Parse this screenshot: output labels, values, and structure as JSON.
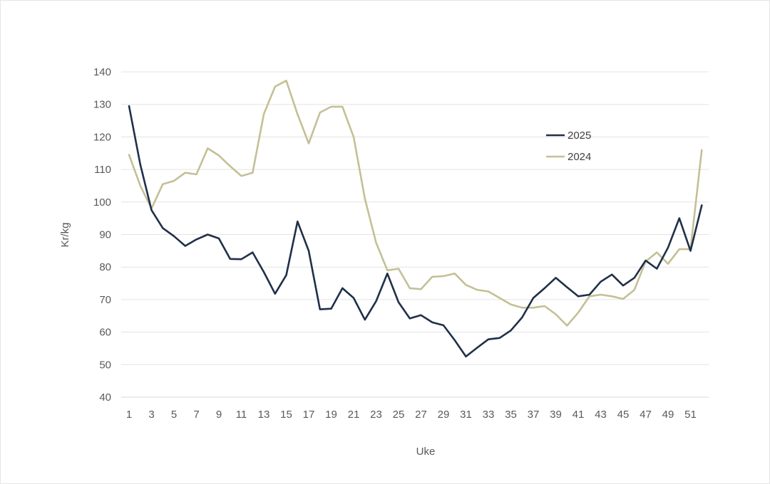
{
  "chart_data": {
    "type": "line",
    "title": "",
    "xlabel": "Uke",
    "ylabel": "Kr/kg",
    "ylim": [
      40,
      140
    ],
    "yticks": [
      40,
      50,
      60,
      70,
      80,
      90,
      100,
      110,
      120,
      130,
      140
    ],
    "xlim": [
      1,
      53
    ],
    "xticks": [
      1,
      3,
      5,
      7,
      9,
      11,
      13,
      15,
      17,
      19,
      21,
      23,
      25,
      27,
      29,
      31,
      33,
      35,
      37,
      39,
      41,
      43,
      45,
      47,
      49,
      51
    ],
    "grid": "horizontal",
    "legend_position": "right",
    "series": [
      {
        "name": "2025",
        "color": "#1f3049",
        "x": [
          1,
          2,
          3,
          4,
          5,
          6,
          7,
          8,
          9,
          10,
          11,
          12,
          13,
          14,
          15,
          16,
          17,
          18,
          19,
          20,
          21,
          22,
          23,
          24,
          25,
          26,
          27,
          28,
          29,
          30,
          31,
          32,
          33,
          34,
          35,
          36,
          37,
          38,
          39,
          40,
          41,
          42,
          43,
          44,
          45,
          46,
          47,
          48,
          49,
          50,
          51,
          52
        ],
        "values": [
          129.5,
          111.5,
          97.5,
          92,
          89.5,
          86.5,
          88.5,
          90,
          88.8,
          82.5,
          82.4,
          84.5,
          78.5,
          71.8,
          77.5,
          94,
          85,
          67,
          67.2,
          73.5,
          70.5,
          63.8,
          69.5,
          78,
          69.2,
          64.2,
          65.2,
          63,
          62.1,
          57.5,
          52.5,
          55.2,
          57.8,
          58.2,
          60.5,
          64.5,
          70.5,
          73.5,
          76.7,
          73.8,
          71,
          71.5,
          75.5,
          77.7,
          74.3,
          76.7,
          82,
          79.5,
          86,
          95,
          85,
          99
        ]
      },
      {
        "name": "2024",
        "color": "#c4c096",
        "x": [
          1,
          2,
          3,
          4,
          5,
          6,
          7,
          8,
          9,
          10,
          11,
          12,
          13,
          14,
          15,
          16,
          17,
          18,
          19,
          20,
          21,
          22,
          23,
          24,
          25,
          26,
          27,
          28,
          29,
          30,
          31,
          32,
          33,
          34,
          35,
          36,
          37,
          38,
          39,
          40,
          41,
          42,
          43,
          44,
          45,
          46,
          47,
          48,
          49,
          50,
          51,
          52
        ],
        "values": [
          114.5,
          105,
          98,
          105.5,
          106.5,
          109,
          108.5,
          116.5,
          114.3,
          111,
          108,
          109,
          127,
          135.5,
          137.3,
          127,
          118,
          127.5,
          129.3,
          129.3,
          120,
          101,
          87.5,
          79,
          79.5,
          73.5,
          73.2,
          77,
          77.2,
          78,
          74.5,
          73,
          72.5,
          70.5,
          68.5,
          67.5,
          67.5,
          68,
          65.5,
          62,
          66,
          71,
          71.5,
          71,
          70.2,
          73,
          81.7,
          84.5,
          81,
          85.5,
          85.5,
          116
        ]
      }
    ]
  }
}
